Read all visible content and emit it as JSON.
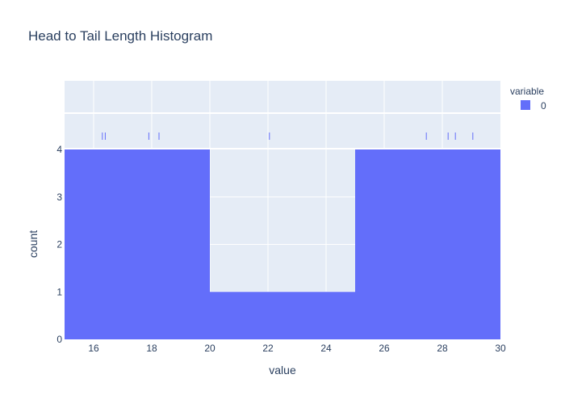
{
  "chart_data": {
    "type": "bar",
    "title": "Head to Tail Length Histogram",
    "xlabel": "value",
    "ylabel": "count",
    "xlim": [
      15,
      30
    ],
    "ylim": [
      0,
      4
    ],
    "x_ticks": [
      16,
      18,
      20,
      22,
      24,
      26,
      28,
      30
    ],
    "y_ticks": [
      0,
      1,
      2,
      3,
      4
    ],
    "bins": [
      {
        "start": 15,
        "end": 20,
        "count": 4
      },
      {
        "start": 20,
        "end": 25,
        "count": 1
      },
      {
        "start": 25,
        "end": 30,
        "count": 4
      }
    ],
    "rug_values": [
      16.3,
      16.4,
      17.9,
      18.25,
      22.05,
      27.45,
      28.2,
      28.45,
      29.05
    ],
    "legend": {
      "title": "variable",
      "items": [
        {
          "name": "0",
          "color": "#636efa"
        }
      ]
    },
    "colors": {
      "bar": "#636efa",
      "plot_bg": "#e5ecf6",
      "grid": "#ffffff",
      "text": "#2a3f5f"
    }
  }
}
